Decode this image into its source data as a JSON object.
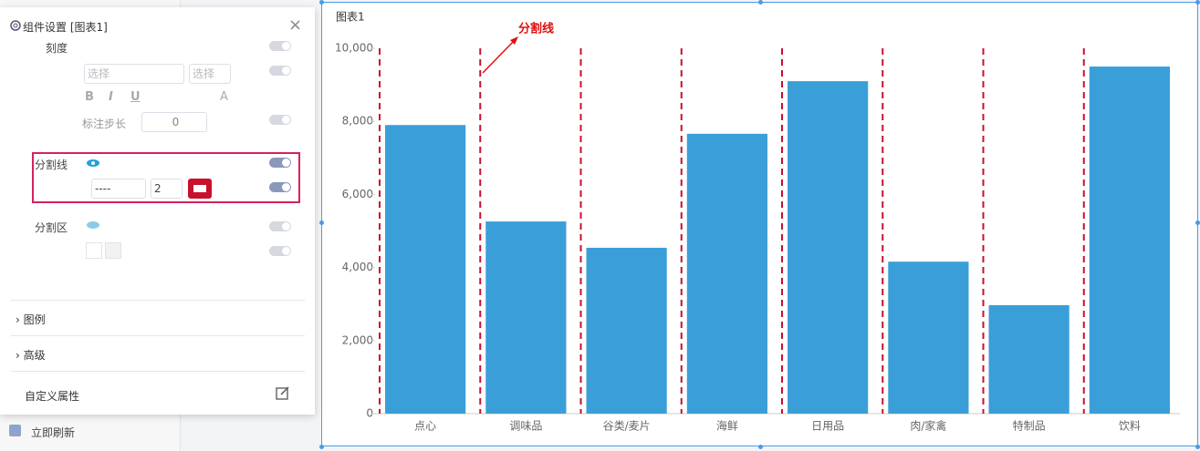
{
  "panel": {
    "title": "组件设置 [图表1]",
    "scale_label": "刻度",
    "select_placeholders": [
      "选择",
      "选择"
    ],
    "format_buttons": [
      "B",
      "I",
      "U",
      "A"
    ],
    "step_label": "标注步长",
    "step_value": 0,
    "split_line_label": "分割线",
    "line_style": "----",
    "line_width": 2,
    "split_area_label": "分割区",
    "sections": [
      "图例",
      "高级"
    ],
    "custom_props": "自定义属性"
  },
  "footer": {
    "auto_refresh": "立即刷新"
  },
  "chart_data": {
    "type": "bar",
    "title": "图表1",
    "annotation": "分割线",
    "categories": [
      "点心",
      "调味品",
      "谷类/麦片",
      "海鲜",
      "日用品",
      "肉/家禽",
      "特制品",
      "饮料"
    ],
    "values": [
      7900,
      5260,
      4540,
      7660,
      9100,
      4160,
      2970,
      9500
    ],
    "color": "#3a9fd9",
    "ylim": [
      0,
      10000
    ],
    "yticks": [
      0,
      {
        "value": 2000,
        "label": "2,000"
      },
      {
        "value": 4000,
        "label": "4,000"
      },
      {
        "value": 6000,
        "label": "6,000"
      },
      {
        "value": 8000,
        "label": "8,000"
      },
      {
        "value": 10000,
        "label": "10,000"
      }
    ],
    "split_lines": {
      "style": "dashed",
      "color": "#c8102e"
    }
  }
}
